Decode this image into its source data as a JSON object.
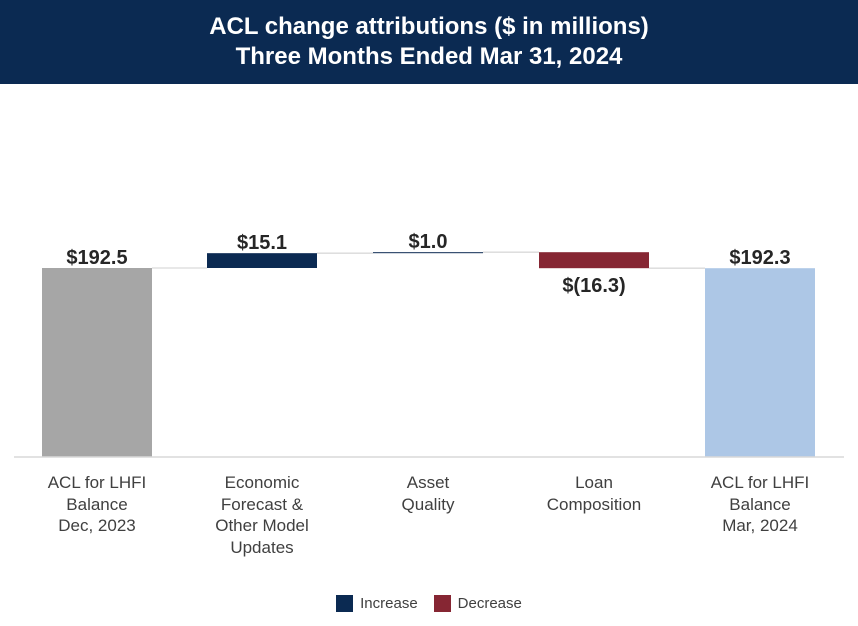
{
  "chart_data": {
    "type": "waterfall",
    "title": "ACL change attributions ($ in millions)",
    "subtitle": "Three Months Ended Mar 31, 2024",
    "categories": [
      [
        "ACL for LHFI",
        "Balance",
        "Dec, 2023"
      ],
      [
        "Economic",
        "Forecast &",
        "Other Model",
        "Updates"
      ],
      [
        "Asset",
        "Quality"
      ],
      [
        "Loan",
        "Composition"
      ],
      [
        "ACL for LHFI",
        "Balance",
        "Mar, 2024"
      ]
    ],
    "steps": [
      {
        "kind": "total",
        "value": 192.5,
        "label": "$192.5",
        "color": "#a6a6a6"
      },
      {
        "kind": "increase",
        "value": 15.1,
        "label": "$15.1",
        "color": "#0b2a52"
      },
      {
        "kind": "increase",
        "value": 1.0,
        "label": "$1.0",
        "color": "#0b2a52"
      },
      {
        "kind": "decrease",
        "value": -16.3,
        "label": "$(16.3)",
        "color": "#862633"
      },
      {
        "kind": "total",
        "value": 192.3,
        "label": "$192.3",
        "color": "#adc7e6"
      }
    ],
    "ylim": [
      0,
      210
    ],
    "legend": [
      {
        "name": "Increase",
        "color": "#0b2a52"
      },
      {
        "name": "Decrease",
        "color": "#862633"
      }
    ],
    "legend_position": "bottom"
  }
}
